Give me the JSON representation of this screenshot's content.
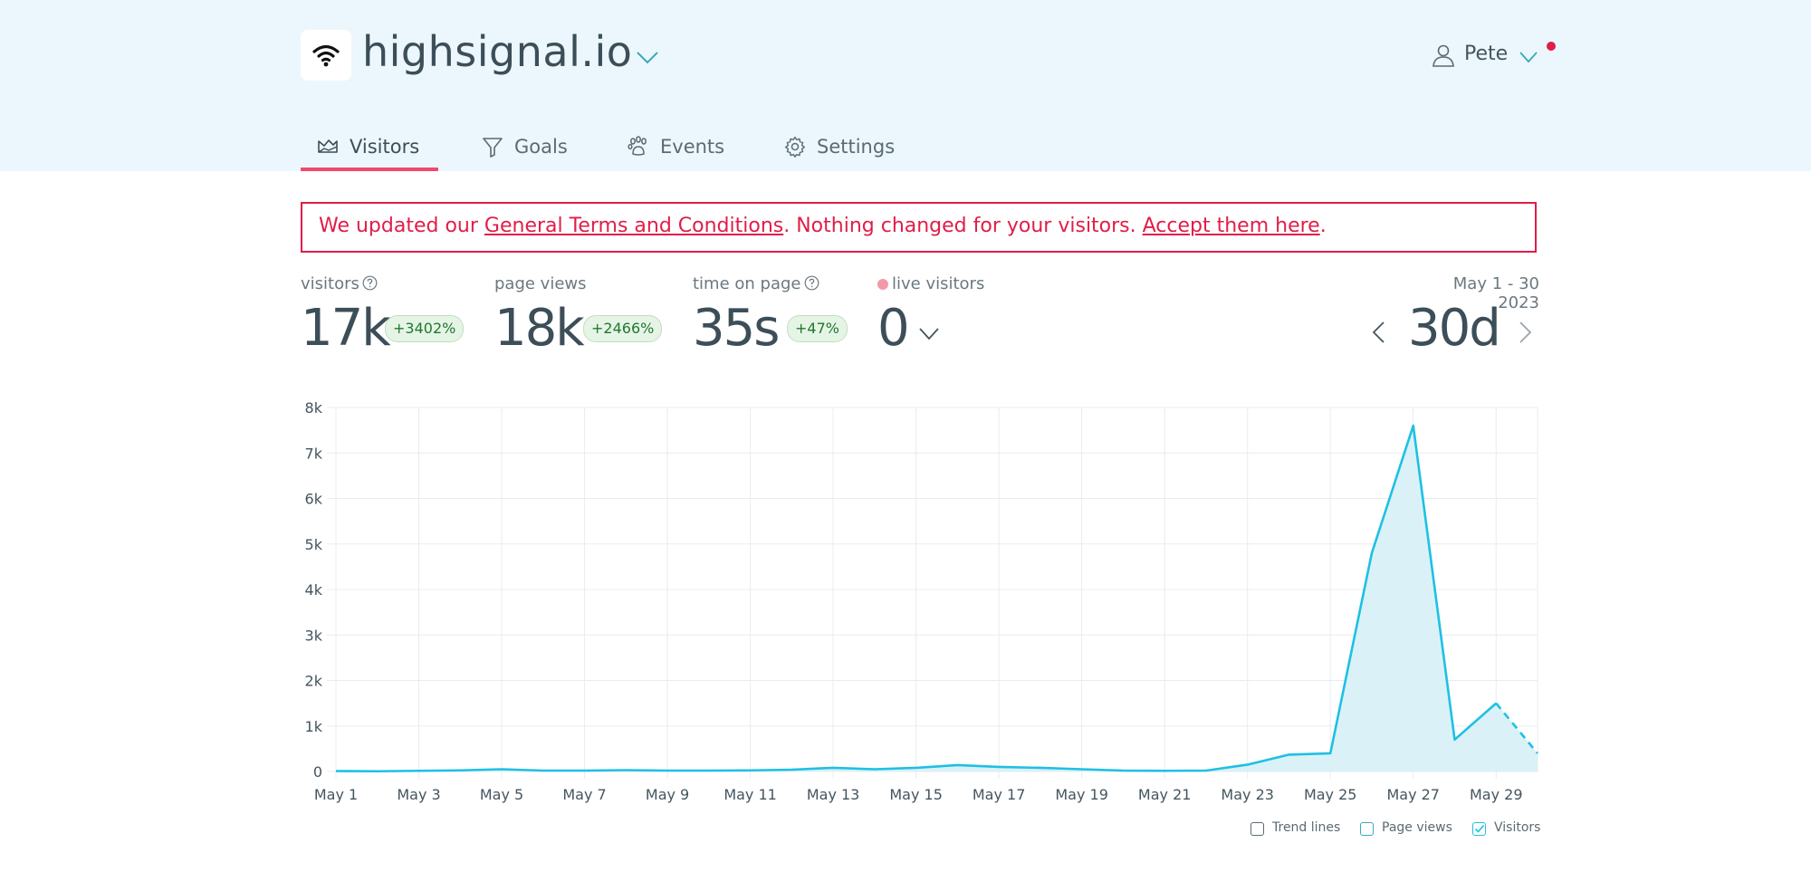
{
  "header": {
    "site_name": "highsignal.io",
    "user_name": "Pete"
  },
  "tabs": [
    {
      "label": "Visitors",
      "icon": "crown-chart-icon",
      "active": true
    },
    {
      "label": "Goals",
      "icon": "funnel-icon"
    },
    {
      "label": "Events",
      "icon": "paw-icon"
    },
    {
      "label": "Settings",
      "icon": "gear-icon"
    }
  ],
  "notice": {
    "prefix": "We updated our ",
    "link1": "General Terms and Conditions",
    "middle": ". Nothing changed for your visitors. ",
    "link2": "Accept them here",
    "suffix": "."
  },
  "stats": {
    "visitors": {
      "label": "visitors",
      "value": "17k",
      "change": "+3402%"
    },
    "page_views": {
      "label": "page views",
      "value": "18k",
      "change": "+2466%"
    },
    "time_on_page": {
      "label": "time on page",
      "value": "35s",
      "change": "+47%"
    },
    "live_visitors": {
      "label": "live visitors",
      "value": "0"
    }
  },
  "range": {
    "label": "May 1 - 30 2023",
    "value": "30d"
  },
  "legend": {
    "trend": "Trend lines",
    "page_views": "Page views",
    "visitors": "Visitors"
  },
  "colors": {
    "accent": "#f1486b",
    "line": "#1ec0e4",
    "alert": "#e11d48"
  },
  "chart_data": {
    "type": "area",
    "x": [
      "May 1",
      "May 2",
      "May 3",
      "May 4",
      "May 5",
      "May 6",
      "May 7",
      "May 8",
      "May 9",
      "May 10",
      "May 11",
      "May 12",
      "May 13",
      "May 14",
      "May 15",
      "May 16",
      "May 17",
      "May 18",
      "May 19",
      "May 20",
      "May 21",
      "May 22",
      "May 23",
      "May 24",
      "May 25",
      "May 26",
      "May 27",
      "May 28",
      "May 29",
      "May 30"
    ],
    "x_tick_labels": [
      "May 1",
      "May 3",
      "May 5",
      "May 7",
      "May 9",
      "May 11",
      "May 13",
      "May 15",
      "May 17",
      "May 19",
      "May 21",
      "May 23",
      "May 25",
      "May 27",
      "May 29"
    ],
    "series": [
      {
        "name": "Visitors",
        "values": [
          10,
          5,
          15,
          25,
          50,
          20,
          20,
          30,
          20,
          20,
          25,
          40,
          80,
          50,
          80,
          140,
          100,
          80,
          50,
          20,
          15,
          20,
          150,
          370,
          400,
          4800,
          7600,
          700,
          1500,
          400
        ]
      }
    ],
    "dashed_last_segment": true,
    "y_ticks": [
      "0",
      "1k",
      "2k",
      "3k",
      "4k",
      "5k",
      "6k",
      "7k",
      "8k"
    ],
    "ylim": [
      0,
      8000
    ],
    "grid": true
  }
}
